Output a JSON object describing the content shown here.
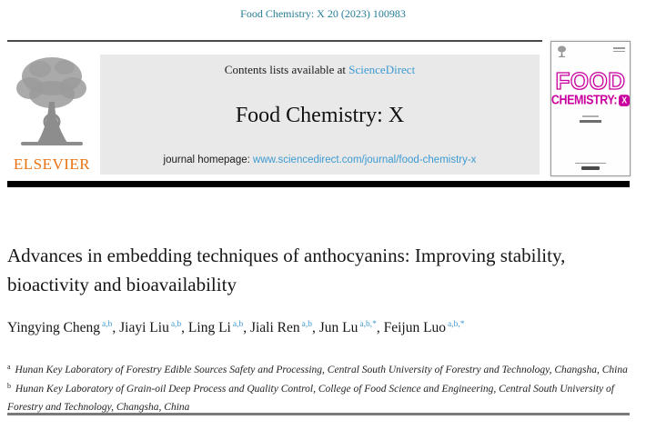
{
  "page": {
    "citation": "Food Chemistry: X 20 (2023) 100983"
  },
  "masthead": {
    "contents_prefix": "Contents lists available at ",
    "sciencedirect_link": "ScienceDirect",
    "journal_name": "Food Chemistry: X",
    "homepage_prefix": "journal homepage: ",
    "homepage_url": "www.sciencedirect.com/journal/food-chemistry-x",
    "publisher_wordmark": "ELSEVIER"
  },
  "cover": {
    "title_line1": "FOOD",
    "title_line2": "CHEMISTRY:",
    "x_badge": "X"
  },
  "article": {
    "title": "Advances in embedding techniques of anthocyanins: Improving stability, bioactivity and bioavailability",
    "author_separator": ", ",
    "authors": [
      {
        "name": "Yingying Cheng",
        "sup": "a,b"
      },
      {
        "name": "Jiayi Liu",
        "sup": "a,b"
      },
      {
        "name": "Ling Li",
        "sup": "a,b"
      },
      {
        "name": "Jiali Ren",
        "sup": "a,b"
      },
      {
        "name": "Jun Lu",
        "sup": "a,b,*"
      },
      {
        "name": "Feijun Luo",
        "sup": "a,b,*"
      }
    ],
    "affiliations": [
      {
        "marker": "a",
        "text": "Hunan Key Laboratory of Forestry Edible Sources Safety and Processing, Central South University of Forestry and Technology, Changsha, China"
      },
      {
        "marker": "b",
        "text": "Hunan Key Laboratory of Grain-oil Deep Process and Quality Control, College of Food Science and Engineering, Central South University of Forestry and Technology, Changsha, China"
      }
    ]
  },
  "colors": {
    "teal": "#267d96",
    "link_blue": "#3d9ad1",
    "elsevier_orange": "#e87211",
    "cover_magenta": "#c9009e"
  }
}
